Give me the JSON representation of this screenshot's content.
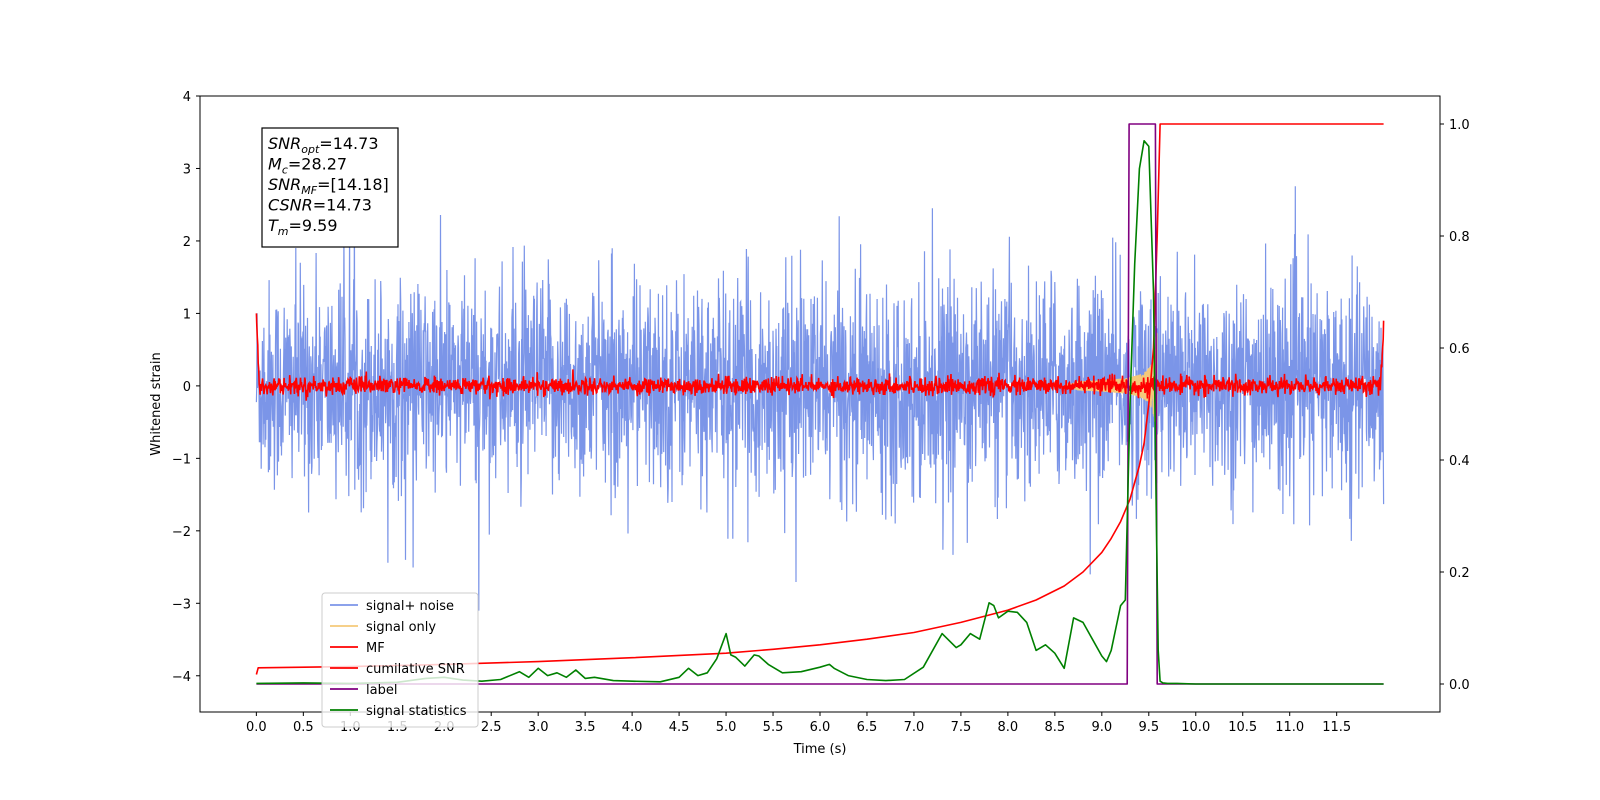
{
  "chart_data": {
    "type": "line",
    "xlabel": "Time (s)",
    "ylabel": "Whitened strain",
    "xlim": [
      -0.6,
      12.6
    ],
    "ylim": [
      -4.5,
      4.0
    ],
    "ylim_right": [
      -0.05,
      1.05
    ],
    "x_ticks": [
      0.0,
      0.5,
      1.0,
      1.5,
      2.0,
      2.5,
      3.0,
      3.5,
      4.0,
      4.5,
      5.0,
      5.5,
      6.0,
      6.5,
      7.0,
      7.5,
      8.0,
      8.5,
      9.0,
      9.5,
      10.0,
      10.5,
      11.0,
      11.5
    ],
    "x_tick_labels": [
      "0.0",
      "0.5",
      "1.0",
      "1.5",
      "2.0",
      "2.5",
      "3.0",
      "3.5",
      "4.0",
      "4.5",
      "5.0",
      "5.5",
      "6.0",
      "6.5",
      "7.0",
      "7.5",
      "8.0",
      "8.5",
      "9.0",
      "9.5",
      "10.0",
      "10.5",
      "11.0",
      "11.5"
    ],
    "y_ticks": [
      4,
      3,
      2,
      1,
      0,
      -1,
      -2,
      -3,
      -4
    ],
    "y_tick_labels": [
      "4",
      "3",
      "2",
      "1",
      "0",
      "−1",
      "−2",
      "−3",
      "−4"
    ],
    "y_right_ticks": [
      1.0,
      0.8,
      0.6,
      0.4,
      0.2,
      0.0
    ],
    "y_right_tick_labels": [
      "1.0",
      "0.8",
      "0.6",
      "0.4",
      "0.2",
      "0.0"
    ],
    "legend_position": "lower-left",
    "grid": false,
    "annotation": {
      "lines": [
        {
          "base": "SNR",
          "sub": "opt",
          "value": "=14.73"
        },
        {
          "base": "M",
          "sub": "c",
          "value": "=28.27"
        },
        {
          "base": "SNR",
          "sub": "MF",
          "value": "=[14.18]"
        },
        {
          "base": "CSNR",
          "sub": "",
          "value": "=14.73"
        },
        {
          "base": "T",
          "sub": "m",
          "value": "=9.59"
        }
      ]
    },
    "series": [
      {
        "name": "signal+ noise",
        "axis": "left",
        "color": "#7b95e8",
        "style": "noise",
        "x_range": [
          0.0,
          12.0
        ],
        "amplitude_rms": 0.72,
        "peak_range": [
          -3.5,
          3.1
        ]
      },
      {
        "name": "signal only",
        "axis": "left",
        "color": "#f5c97a",
        "style": "chirp",
        "x_range": [
          8.6,
          9.59
        ],
        "peak_amplitude": 1.6
      },
      {
        "name": "MF",
        "axis": "left",
        "color": "#ff0000",
        "style": "mf",
        "x_range": [
          0.0,
          12.0
        ],
        "amplitude_rms": 0.06,
        "edge_values": [
          1.0,
          0.9
        ]
      },
      {
        "name": "cumilative SNR",
        "axis": "right",
        "color": "#ff0000",
        "x": [
          0.0,
          0.02,
          1.0,
          2.0,
          3.0,
          4.0,
          5.0,
          5.5,
          6.0,
          6.5,
          7.0,
          7.5,
          8.0,
          8.3,
          8.6,
          8.8,
          9.0,
          9.1,
          9.2,
          9.3,
          9.35,
          9.4,
          9.45,
          9.5,
          9.55,
          9.59,
          9.62,
          12.0
        ],
        "y": [
          0.017,
          0.029,
          0.031,
          0.035,
          0.04,
          0.047,
          0.055,
          0.062,
          0.07,
          0.08,
          0.092,
          0.11,
          0.132,
          0.15,
          0.175,
          0.2,
          0.235,
          0.26,
          0.29,
          0.33,
          0.36,
          0.39,
          0.43,
          0.5,
          0.6,
          0.8,
          1.0,
          1.0
        ]
      },
      {
        "name": "label",
        "axis": "right",
        "color": "#800080",
        "x": [
          0.0,
          9.27,
          9.29,
          9.57,
          9.59,
          12.0
        ],
        "y": [
          0.0,
          0.0,
          1.0,
          1.0,
          0.0,
          0.0
        ]
      },
      {
        "name": "signal statistics",
        "axis": "right",
        "color": "#008000",
        "x": [
          0.0,
          0.5,
          1.0,
          1.5,
          1.8,
          2.0,
          2.2,
          2.4,
          2.6,
          2.8,
          2.9,
          3.0,
          3.1,
          3.2,
          3.3,
          3.4,
          3.5,
          3.6,
          3.8,
          4.0,
          4.3,
          4.5,
          4.6,
          4.7,
          4.8,
          4.9,
          5.0,
          5.05,
          5.1,
          5.2,
          5.3,
          5.35,
          5.45,
          5.6,
          5.8,
          6.0,
          6.1,
          6.15,
          6.3,
          6.5,
          6.7,
          6.9,
          7.1,
          7.3,
          7.45,
          7.5,
          7.6,
          7.7,
          7.8,
          7.85,
          7.9,
          8.0,
          8.1,
          8.2,
          8.3,
          8.4,
          8.5,
          8.6,
          8.7,
          8.8,
          8.9,
          9.0,
          9.05,
          9.1,
          9.15,
          9.2,
          9.25,
          9.3,
          9.35,
          9.4,
          9.45,
          9.5,
          9.55,
          9.58,
          9.6,
          9.62,
          9.65,
          9.7,
          9.8,
          10.0,
          12.0
        ],
        "y": [
          0.001,
          0.002,
          0.001,
          0.003,
          0.01,
          0.012,
          0.007,
          0.005,
          0.008,
          0.022,
          0.012,
          0.028,
          0.015,
          0.02,
          0.012,
          0.025,
          0.01,
          0.012,
          0.006,
          0.005,
          0.004,
          0.012,
          0.028,
          0.015,
          0.02,
          0.045,
          0.09,
          0.052,
          0.048,
          0.032,
          0.052,
          0.05,
          0.035,
          0.02,
          0.022,
          0.03,
          0.035,
          0.028,
          0.015,
          0.008,
          0.006,
          0.008,
          0.03,
          0.09,
          0.065,
          0.07,
          0.09,
          0.08,
          0.145,
          0.14,
          0.118,
          0.13,
          0.128,
          0.11,
          0.06,
          0.07,
          0.055,
          0.028,
          0.118,
          0.11,
          0.08,
          0.05,
          0.04,
          0.06,
          0.1,
          0.14,
          0.15,
          0.5,
          0.75,
          0.92,
          0.97,
          0.96,
          0.7,
          0.3,
          0.06,
          0.005,
          0.002,
          0.001,
          0.001,
          0.0,
          0.0
        ]
      }
    ]
  }
}
